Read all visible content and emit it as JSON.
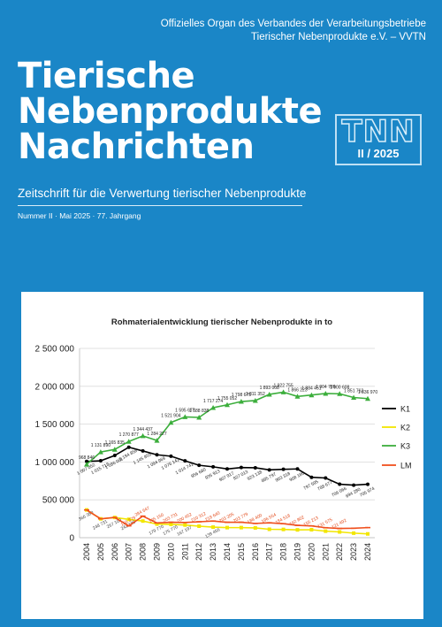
{
  "header": {
    "org_line1": "Offizielles Organ des Verbandes der Verarbeitungsbetriebe",
    "org_line2": "Tierischer Nebenprodukte e.V. – VVTN"
  },
  "masthead": {
    "title_line1": "Tierische",
    "title_line2": "Nebenprodukte",
    "title_line3": "Nachrichten",
    "logo": "TNN",
    "issue_code": "II / 2025",
    "subtitle": "Zeitschrift für die Verwertung tierischer Nebenprodukte",
    "issue_line": "Nummer II · Mai 2025 · 77. Jahrgang"
  },
  "colors": {
    "background": "#1a86c7",
    "K1": "#000000",
    "K2": "#f2e600",
    "K3": "#3cae3c",
    "LM": "#f0501e"
  },
  "chart_data": {
    "type": "line",
    "title": "Rohmaterialentwicklung tierischer Nebenprodukte in to",
    "categories": [
      "2004",
      "2005",
      "2006",
      "2007",
      "2008",
      "2009",
      "2010",
      "2011",
      "2012",
      "2013",
      "2014",
      "2015",
      "2016",
      "2017",
      "2018",
      "2019",
      "2020",
      "2021",
      "2022",
      "2023",
      "2024"
    ],
    "y_ticks": [
      "0",
      "500 000",
      "1 000 000",
      "1 500 000",
      "2 000 000",
      "2 500 000"
    ],
    "ylim": [
      0,
      2500000
    ],
    "grid": true,
    "legend_position": "right",
    "series": [
      {
        "name": "K1",
        "values": [
          1007052,
          1015718,
          1086081,
          1194858,
          1145855,
          1094969,
          1076142,
          1014741,
          956680,
          935913,
          907917,
          927013,
          923138,
          895797,
          903318,
          908185,
          797595,
          788677,
          706066,
          694280,
          705974
        ],
        "labels": [
          "1 007 052",
          "1 015 718",
          "1 086 081",
          "1 194 858",
          "1 145 855",
          "1 094 969",
          "1 076 142",
          "1 014 741",
          "956 680",
          "935 913",
          "907 917",
          "927 013",
          "923 138",
          "895 797",
          "903 318",
          "908 185",
          "797 595",
          "788 677",
          "706 066",
          "694 280",
          "705 974"
        ]
      },
      {
        "name": "K2",
        "values": [
          366380,
          248731,
          267100,
          242100,
          220000,
          179770,
          175770,
          167197,
          152000,
          139456,
          133000,
          133000,
          129000,
          111000,
          109000,
          103000,
          105000,
          86000,
          76000,
          60000,
          50000
        ],
        "labels": [
          "366 380",
          "248 731",
          "267 100",
          "242 100",
          "",
          "179 770",
          "175 770",
          "167 197",
          "",
          "139 456",
          "",
          "",
          "",
          "",
          "",
          "",
          "",
          "",
          "",
          "",
          ""
        ]
      },
      {
        "name": "K3",
        "values": [
          968846,
          1131890,
          1165835,
          1270877,
          1344437,
          1284227,
          1521904,
          1595677,
          1588838,
          1717274,
          1755052,
          1798675,
          1811352,
          1893008,
          1922755,
          1866223,
          1884451,
          1904789,
          1900608,
          1851762,
          1836970
        ],
        "labels": [
          "968 846",
          "1 131 890",
          "1 165 835",
          "1 270 877",
          "1 344 437",
          "1 284 227",
          "1 521 904",
          "1 595 677",
          "1 588 838",
          "1 717 274",
          "1 755 052",
          "1 798 675",
          "1 811 352",
          "1 893 008",
          "1 922 755",
          "1 866 223",
          "1 884 451",
          "1 904 789",
          "1 900 608",
          "1 851 762",
          "1 836 970"
        ]
      },
      {
        "name": "LM",
        "values": [
          366380,
          248731,
          267100,
          156379,
          284647,
          195150,
          203731,
          200452,
          210312,
          219640,
          203205,
          203779,
          188400,
          196554,
          184518,
          162802,
          155213,
          131575,
          121492,
          125000,
          133000
        ],
        "labels": [
          "",
          "",
          "",
          "156 379",
          "284 647",
          "195 150",
          "203 731",
          "200 452",
          "210 312",
          "219 640",
          "203 205",
          "203 779",
          "188 400",
          "196 554",
          "184 518",
          "162 802",
          "155 213",
          "131 575",
          "121 492",
          "",
          ""
        ]
      }
    ]
  }
}
